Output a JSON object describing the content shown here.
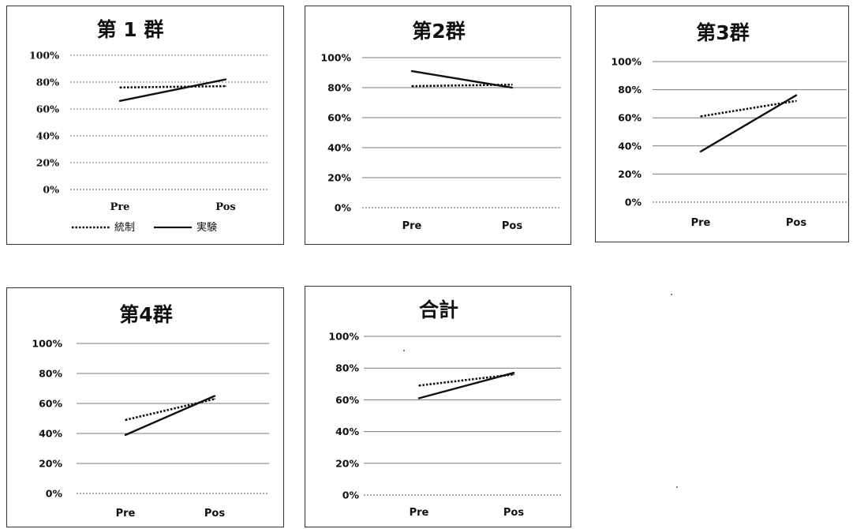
{
  "colors": {
    "line": "#111111",
    "grid": "#7a7a7a",
    "background": "#ffffff"
  },
  "chart_data": [
    {
      "type": "line",
      "title": "第 1 群",
      "categories": [
        "Pre",
        "Pos"
      ],
      "y_ticks": [
        "0%",
        "20%",
        "40%",
        "60%",
        "80%",
        "100%"
      ],
      "ylim": [
        0,
        100
      ],
      "legend": "bottom",
      "series": [
        {
          "name": "統制",
          "style": "dotted",
          "values": [
            76,
            77
          ]
        },
        {
          "name": "実験",
          "style": "solid",
          "values": [
            66,
            82
          ]
        }
      ]
    },
    {
      "type": "line",
      "title": "第2群",
      "categories": [
        "Pre",
        "Pos"
      ],
      "y_ticks": [
        "0%",
        "20%",
        "40%",
        "60%",
        "80%",
        "100%"
      ],
      "ylim": [
        0,
        100
      ],
      "series": [
        {
          "style": "dotted",
          "values": [
            81,
            82
          ]
        },
        {
          "style": "solid",
          "values": [
            91,
            80
          ]
        }
      ]
    },
    {
      "type": "line",
      "title": "第3群",
      "categories": [
        "Pre",
        "Pos"
      ],
      "y_ticks": [
        "0%",
        "20%",
        "40%",
        "60%",
        "80%",
        "100%"
      ],
      "ylim": [
        0,
        100
      ],
      "series": [
        {
          "style": "dotted",
          "values": [
            61,
            72
          ]
        },
        {
          "style": "solid",
          "values": [
            36,
            76
          ]
        }
      ]
    },
    {
      "type": "line",
      "title": "第4群",
      "categories": [
        "Pre",
        "Pos"
      ],
      "y_ticks": [
        "0%",
        "20%",
        "40%",
        "60%",
        "80%",
        "100%"
      ],
      "ylim": [
        0,
        100
      ],
      "series": [
        {
          "style": "dotted",
          "values": [
            49,
            63
          ]
        },
        {
          "style": "solid",
          "values": [
            39,
            65
          ]
        }
      ]
    },
    {
      "type": "line",
      "title": "合計",
      "categories": [
        "Pre",
        "Pos"
      ],
      "y_ticks": [
        "0%",
        "20%",
        "40%",
        "60%",
        "80%",
        "100%"
      ],
      "ylim": [
        0,
        100
      ],
      "series": [
        {
          "style": "dotted",
          "values": [
            69,
            76
          ]
        },
        {
          "style": "solid",
          "values": [
            61,
            77
          ]
        }
      ]
    }
  ]
}
